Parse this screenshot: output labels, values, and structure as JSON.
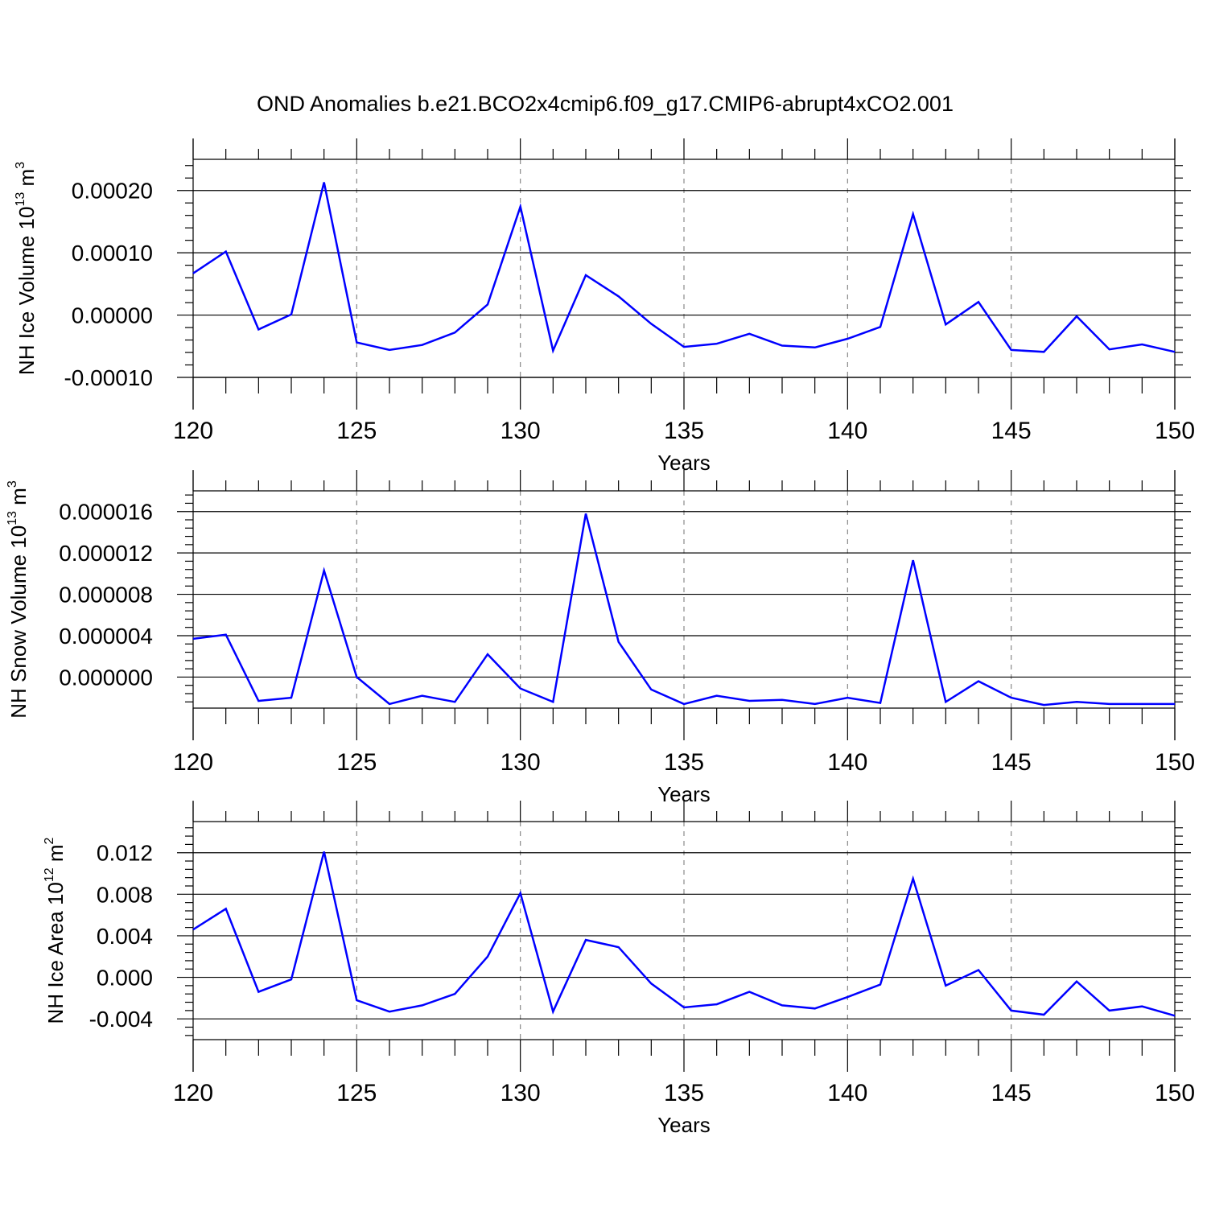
{
  "title": "OND Anomalies b.e21.BCO2x4cmip6.f09_g17.CMIP6-abrupt4xCO2.001",
  "chart_data": [
    {
      "type": "line",
      "xlabel": "Years",
      "ylabel_main": "NH Ice Volume 10",
      "ylabel_exp": "13",
      "ylabel_unit": " m",
      "ylabel_unit_exp": "3",
      "xlim": [
        120,
        150
      ],
      "ylim": [
        -0.0001,
        0.00025
      ],
      "x_ticks": [
        120,
        125,
        130,
        135,
        140,
        145,
        150
      ],
      "y_ticks": [
        -0.0001,
        0.0,
        0.0001,
        0.0002
      ],
      "y_tick_labels": [
        "-0.00010",
        "0.00000",
        "0.00010",
        "0.00020"
      ],
      "grid_x": [
        125,
        130,
        135,
        140,
        145
      ],
      "color": "#0000ff",
      "x": [
        120,
        121,
        122,
        123,
        124,
        125,
        126,
        127,
        128,
        129,
        130,
        131,
        132,
        133,
        134,
        135,
        136,
        137,
        138,
        139,
        140,
        141,
        142,
        143,
        144,
        145,
        146,
        147,
        148,
        149,
        150
      ],
      "values": [
        6.7e-05,
        0.000102,
        -2.3e-05,
        1e-06,
        0.000213,
        -4.4e-05,
        -5.6e-05,
        -4.8e-05,
        -2.8e-05,
        1.7e-05,
        0.000174,
        -5.7e-05,
        6.4e-05,
        3e-05,
        -1.4e-05,
        -5.1e-05,
        -4.6e-05,
        -3e-05,
        -4.9e-05,
        -5.2e-05,
        -3.8e-05,
        -1.9e-05,
        0.000162,
        -1.5e-05,
        2.1e-05,
        -5.6e-05,
        -5.9e-05,
        -2e-06,
        -5.5e-05,
        -4.7e-05,
        -5.9e-05
      ]
    },
    {
      "type": "line",
      "xlabel": "Years",
      "ylabel_main": "NH Snow Volume 10",
      "ylabel_exp": "13",
      "ylabel_unit": " m",
      "ylabel_unit_exp": "3",
      "xlim": [
        120,
        150
      ],
      "ylim": [
        -3e-06,
        1.8e-05
      ],
      "x_ticks": [
        120,
        125,
        130,
        135,
        140,
        145,
        150
      ],
      "y_ticks": [
        0.0,
        4e-06,
        8e-06,
        1.2e-05,
        1.6e-05
      ],
      "y_tick_labels": [
        "0.000000",
        "0.000004",
        "0.000008",
        "0.000012",
        "0.000016"
      ],
      "grid_x": [
        125,
        130,
        135,
        140,
        145
      ],
      "color": "#0000ff",
      "x": [
        120,
        121,
        122,
        123,
        124,
        125,
        126,
        127,
        128,
        129,
        130,
        131,
        132,
        133,
        134,
        135,
        136,
        137,
        138,
        139,
        140,
        141,
        142,
        143,
        144,
        145,
        146,
        147,
        148,
        149,
        150
      ],
      "values": [
        3.7e-06,
        4.1e-06,
        -2.3e-06,
        -2e-06,
        1.03e-05,
        0.0,
        -2.6e-06,
        -1.8e-06,
        -2.4e-06,
        2.2e-06,
        -1.1e-06,
        -2.4e-06,
        1.58e-05,
        3.4e-06,
        -1.2e-06,
        -2.6e-06,
        -1.8e-06,
        -2.3e-06,
        -2.2e-06,
        -2.6e-06,
        -2e-06,
        -2.5e-06,
        1.13e-05,
        -2.4e-06,
        -4e-07,
        -2e-06,
        -2.7e-06,
        -2.4e-06,
        -2.6e-06,
        -2.6e-06,
        -2.6e-06
      ]
    },
    {
      "type": "line",
      "xlabel": "Years",
      "ylabel_main": "NH Ice Area 10",
      "ylabel_exp": "12",
      "ylabel_unit": " m",
      "ylabel_unit_exp": "2",
      "xlim": [
        120,
        150
      ],
      "ylim": [
        -0.006,
        0.015
      ],
      "x_ticks": [
        120,
        125,
        130,
        135,
        140,
        145,
        150
      ],
      "y_ticks": [
        -0.004,
        0.0,
        0.004,
        0.008,
        0.012
      ],
      "y_tick_labels": [
        "-0.004",
        "0.000",
        "0.004",
        "0.008",
        "0.012"
      ],
      "grid_x": [
        125,
        130,
        135,
        140,
        145
      ],
      "color": "#0000ff",
      "x": [
        120,
        121,
        122,
        123,
        124,
        125,
        126,
        127,
        128,
        129,
        130,
        131,
        132,
        133,
        134,
        135,
        136,
        137,
        138,
        139,
        140,
        141,
        142,
        143,
        144,
        145,
        146,
        147,
        148,
        149,
        150
      ],
      "values": [
        0.0046,
        0.0066,
        -0.0014,
        -0.0002,
        0.0121,
        -0.0022,
        -0.0033,
        -0.0027,
        -0.0016,
        0.002,
        0.0081,
        -0.0033,
        0.0036,
        0.0029,
        -0.0006,
        -0.0029,
        -0.0026,
        -0.0014,
        -0.0027,
        -0.003,
        -0.0019,
        -0.0007,
        0.0095,
        -0.0008,
        0.0007,
        -0.0032,
        -0.0036,
        -0.0004,
        -0.0032,
        -0.0028,
        -0.0037
      ]
    }
  ]
}
